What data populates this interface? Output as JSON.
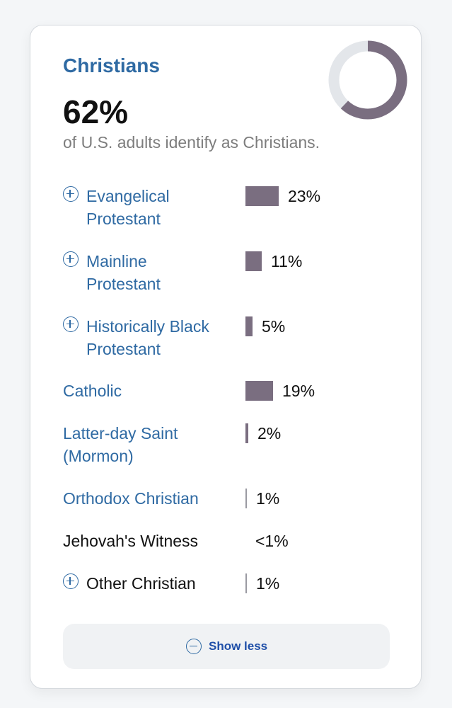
{
  "card": {
    "title": "Christians",
    "percent": "62%",
    "subtitle": "of U.S. adults identify as Christians.",
    "donut_fraction": 0.62,
    "colors": {
      "accent": "#2f6aa3",
      "bar": "#7a6e80",
      "donut_track": "#e3e6ea"
    }
  },
  "rows": [
    {
      "lines": [
        "Evangelical",
        "Protestant"
      ],
      "value": 23,
      "pct": "23%",
      "expandable": true,
      "link": true,
      "icon": "plus-circle-icon"
    },
    {
      "lines": [
        "Mainline",
        "Protestant"
      ],
      "value": 11,
      "pct": "11%",
      "expandable": true,
      "link": true,
      "icon": "plus-circle-icon"
    },
    {
      "lines": [
        "Historically Black",
        "Protestant"
      ],
      "value": 5,
      "pct": "5%",
      "expandable": true,
      "link": true,
      "icon": "plus-circle-icon"
    },
    {
      "lines": [
        "Catholic"
      ],
      "value": 19,
      "pct": "19%",
      "expandable": false,
      "link": true
    },
    {
      "lines": [
        "Latter-day Saint",
        "(Mormon)"
      ],
      "value": 2,
      "pct": "2%",
      "expandable": false,
      "link": true
    },
    {
      "lines": [
        "Orthodox Christian"
      ],
      "value": 1,
      "pct": "1%",
      "expandable": false,
      "link": true
    },
    {
      "lines": [
        "Jehovah's Witness"
      ],
      "value": 0,
      "pct": "<1%",
      "expandable": false,
      "link": false
    },
    {
      "lines": [
        "Other Christian"
      ],
      "value": 1,
      "pct": "1%",
      "expandable": true,
      "link": false,
      "icon": "plus-circle-icon"
    }
  ],
  "show_less": {
    "label": "Show less",
    "icon": "minus-circle-icon"
  }
}
